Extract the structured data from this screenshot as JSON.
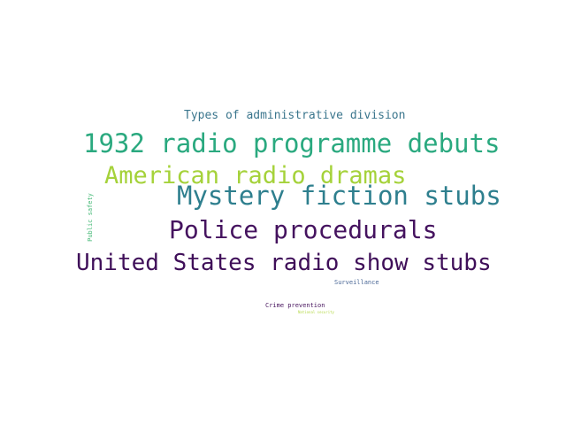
{
  "word_cloud": {
    "words": [
      {
        "text": "Types of administrative division",
        "color": "#3b768d"
      },
      {
        "text": "1932 radio programme debuts",
        "color": "#2aa97f"
      },
      {
        "text": "American radio dramas",
        "color": "#a5d23a"
      },
      {
        "text": "Mystery fiction stubs",
        "color": "#2e7f8e"
      },
      {
        "text": "Police procedurals",
        "color": "#45135f"
      },
      {
        "text": "United States radio show stubs",
        "color": "#3f0f59"
      },
      {
        "text": "Surveillance",
        "color": "#4a6796"
      },
      {
        "text": "Crime prevention",
        "color": "#47145e"
      },
      {
        "text": "National security",
        "color": "#b6d94a"
      },
      {
        "text": "Public safety",
        "color": "#46b977"
      }
    ]
  }
}
